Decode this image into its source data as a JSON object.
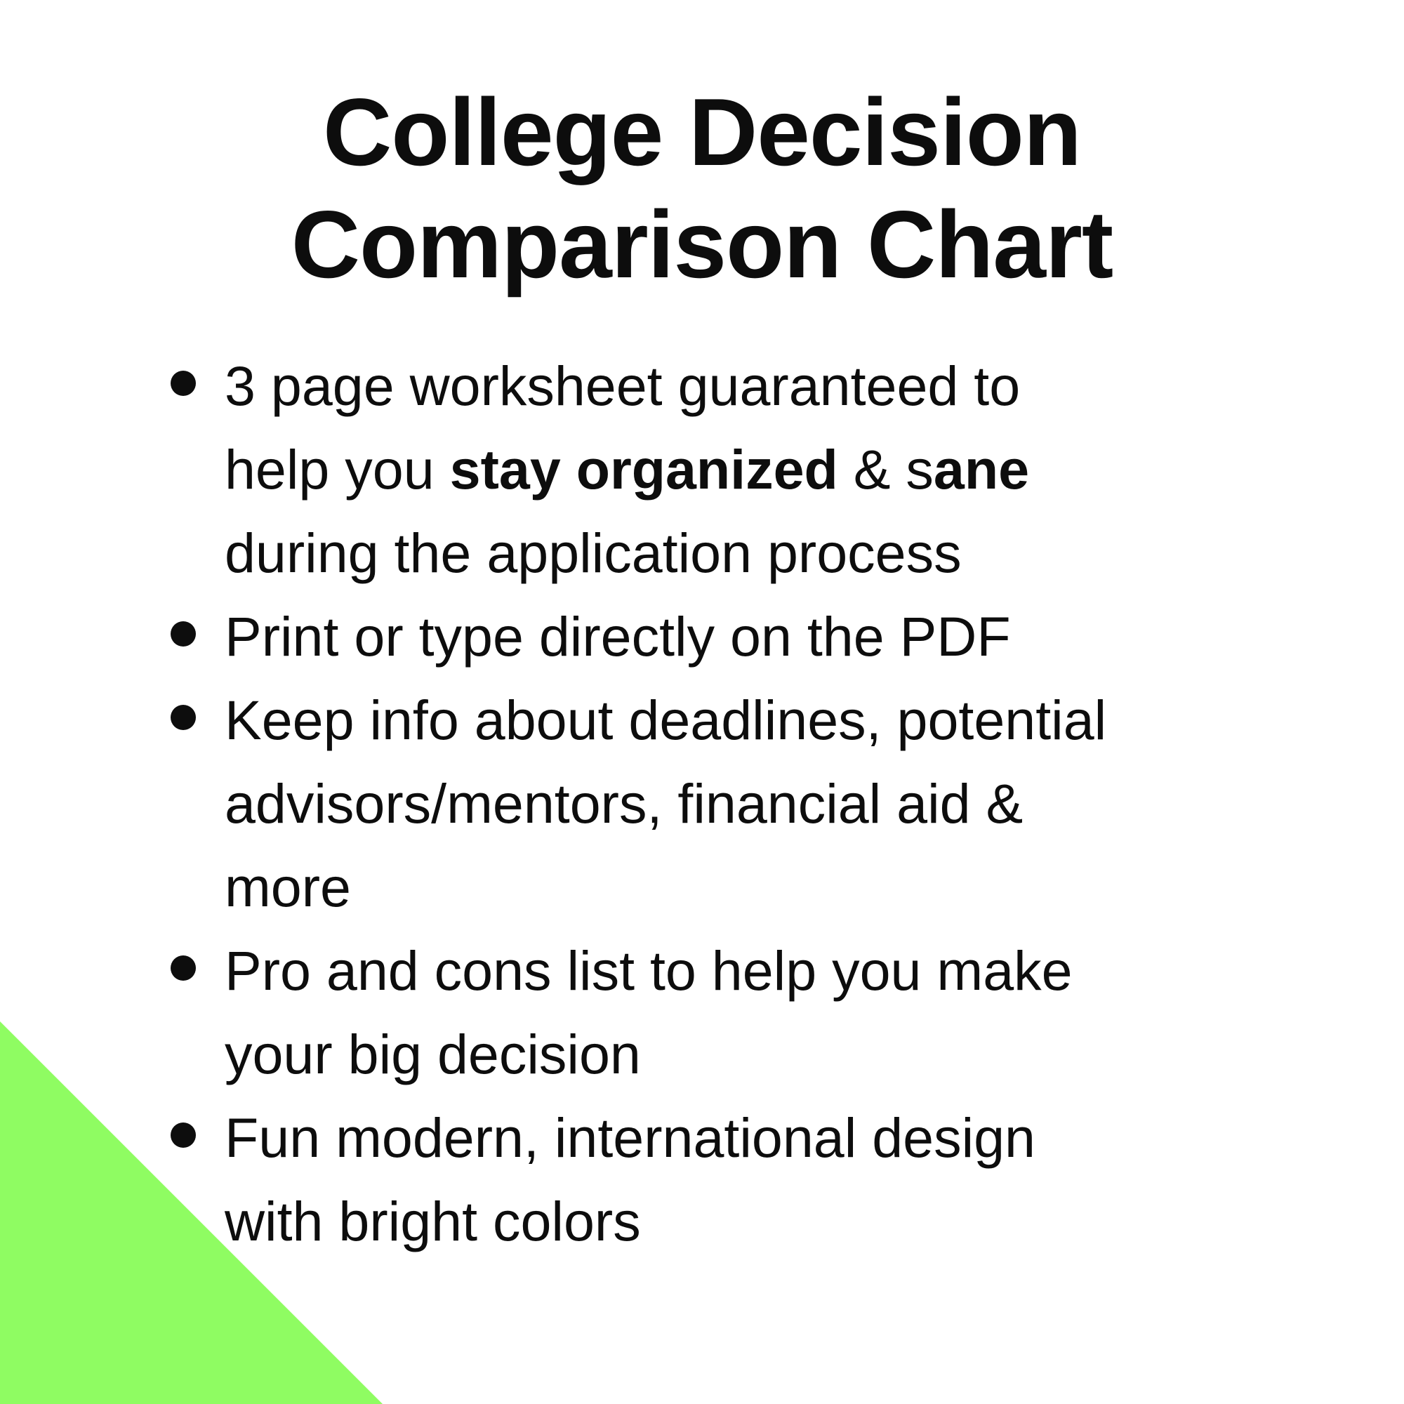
{
  "page": {
    "background": "#ffffff"
  },
  "colors": {
    "text": "#0d0d0d",
    "triangle_green": "#8FFC62"
  },
  "title": {
    "line1": "College Decision",
    "line2": "Comparison Chart"
  },
  "bullets": [
    {
      "lines": [
        [
          {
            "text": "3 page worksheet guaranteed to",
            "bold": false
          }
        ],
        [
          {
            "text": "help you ",
            "bold": false
          },
          {
            "text": "stay organized",
            "bold": true
          },
          {
            "text": " & s",
            "bold": false
          },
          {
            "text": "ane",
            "bold": true
          }
        ],
        [
          {
            "text": "during the application process",
            "bold": false
          }
        ]
      ]
    },
    {
      "lines": [
        [
          {
            "text": "Print or type directly on the PDF",
            "bold": false
          }
        ]
      ]
    },
    {
      "lines": [
        [
          {
            "text": "Keep info about deadlines, potential",
            "bold": false
          }
        ],
        [
          {
            "text": "advisors/mentors, financial aid &",
            "bold": false
          }
        ],
        [
          {
            "text": "more",
            "bold": false
          }
        ]
      ]
    },
    {
      "lines": [
        [
          {
            "text": "Pro and cons list to help you make",
            "bold": false
          }
        ],
        [
          {
            "text": "your big decision",
            "bold": false
          }
        ]
      ]
    },
    {
      "lines": [
        [
          {
            "text": "Fun modern, international design",
            "bold": false
          }
        ],
        [
          {
            "text": "with bright colors",
            "bold": false
          }
        ]
      ]
    }
  ],
  "decor": {
    "triangle": "green-triangle-bottom-left"
  }
}
